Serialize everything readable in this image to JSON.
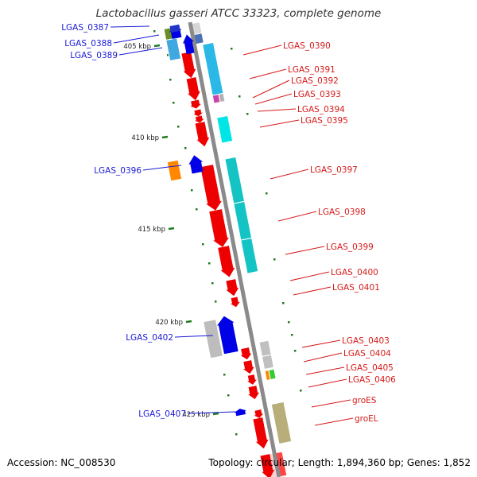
{
  "title": "Lactobacillus gasseri ATCC 33323, complete genome",
  "accession": "Accession: NC_008530",
  "summary": "Topology: circular; Length: 1,894,360 bp; Genes: 1,852",
  "colors": {
    "backbone": "#888888",
    "forward_label": "#1a1ad6",
    "reverse_label": "#d61a1a",
    "forward_gene": "#0000e6",
    "reverse_gene": "#ee0000",
    "ruler_tick": "#1f7a1f"
  },
  "kbp_markers": [
    {
      "label": "405 kbp"
    },
    {
      "label": "410 kbp"
    },
    {
      "label": "415 kbp"
    },
    {
      "label": "420 kbp"
    },
    {
      "label": "425 kbp"
    }
  ],
  "forward_genes": [
    {
      "label": "LGAS_0387"
    },
    {
      "label": "LGAS_0388"
    },
    {
      "label": "LGAS_0389"
    },
    {
      "label": "LGAS_0396"
    },
    {
      "label": "LGAS_0402"
    },
    {
      "label": "LGAS_0407"
    }
  ],
  "reverse_genes": [
    {
      "label": "LGAS_0390"
    },
    {
      "label": "LGAS_0391"
    },
    {
      "label": "LGAS_0392"
    },
    {
      "label": "LGAS_0393"
    },
    {
      "label": "LGAS_0394"
    },
    {
      "label": "LGAS_0395"
    },
    {
      "label": "LGAS_0397"
    },
    {
      "label": "LGAS_0398"
    },
    {
      "label": "LGAS_0399"
    },
    {
      "label": "LGAS_0400"
    },
    {
      "label": "LGAS_0401"
    },
    {
      "label": "LGAS_0403"
    },
    {
      "label": "LGAS_0404"
    },
    {
      "label": "LGAS_0405"
    },
    {
      "label": "LGAS_0406"
    },
    {
      "label": "groES"
    },
    {
      "label": "groEL"
    }
  ]
}
